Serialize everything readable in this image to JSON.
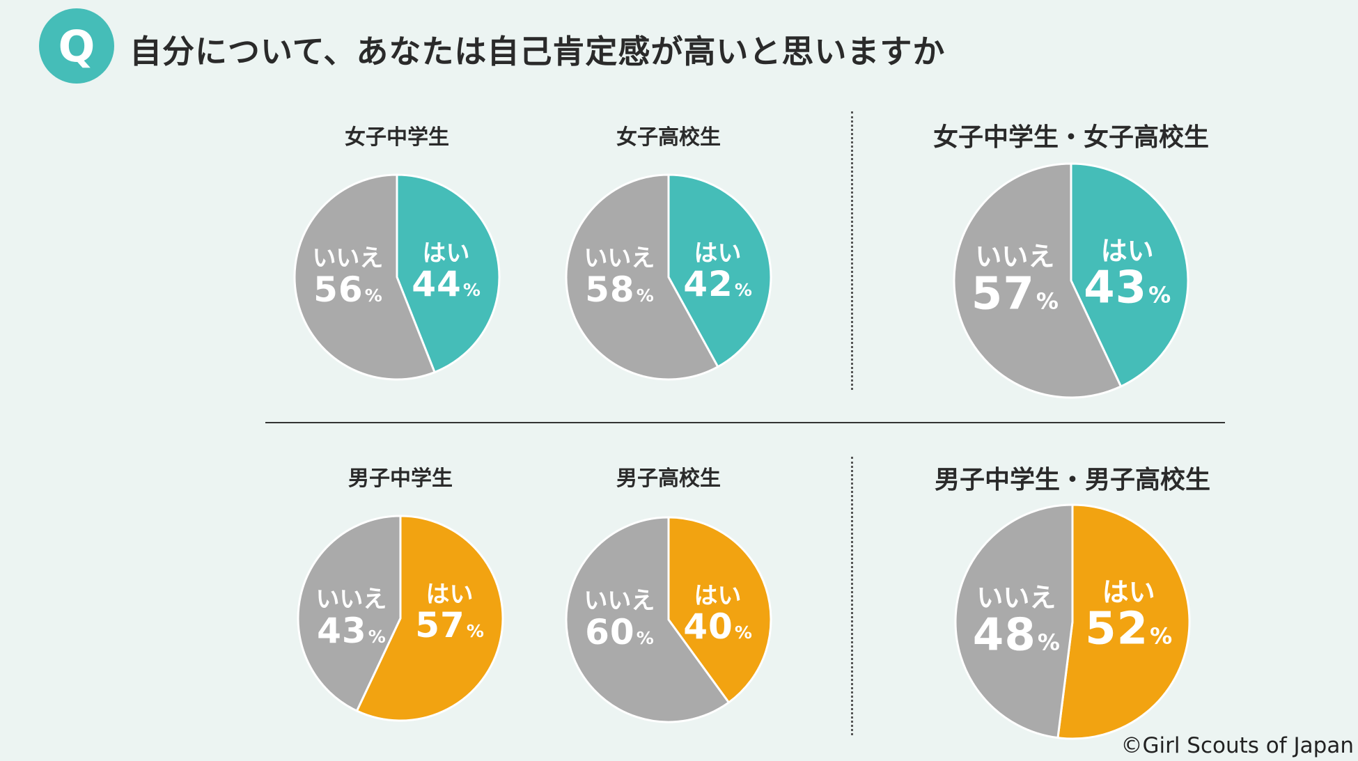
{
  "header": {
    "badge_letter": "Q",
    "question": "自分について、あなたは自己肯定感が高いと思いますか"
  },
  "colors": {
    "girls_yes": "#45bdb8",
    "boys_yes": "#f2a311",
    "no": "#aaaaaa"
  },
  "copyright": "©Girl Scouts of Japan",
  "chart_data": [
    {
      "type": "pie",
      "title": "女子中学生",
      "labels": [
        "はい",
        "いいえ"
      ],
      "values": [
        44,
        56
      ],
      "unit": "%",
      "colors": [
        "#45bdb8",
        "#aaaaaa"
      ]
    },
    {
      "type": "pie",
      "title": "女子高校生",
      "labels": [
        "はい",
        "いいえ"
      ],
      "values": [
        42,
        58
      ],
      "unit": "%",
      "colors": [
        "#45bdb8",
        "#aaaaaa"
      ]
    },
    {
      "type": "pie",
      "title": "女子中学生・女子高校生",
      "labels": [
        "はい",
        "いいえ"
      ],
      "values": [
        43,
        57
      ],
      "unit": "%",
      "colors": [
        "#45bdb8",
        "#aaaaaa"
      ]
    },
    {
      "type": "pie",
      "title": "男子中学生",
      "labels": [
        "はい",
        "いいえ"
      ],
      "values": [
        57,
        43
      ],
      "unit": "%",
      "colors": [
        "#f2a311",
        "#aaaaaa"
      ]
    },
    {
      "type": "pie",
      "title": "男子高校生",
      "labels": [
        "はい",
        "いいえ"
      ],
      "values": [
        40,
        60
      ],
      "unit": "%",
      "colors": [
        "#f2a311",
        "#aaaaaa"
      ]
    },
    {
      "type": "pie",
      "title": "男子中学生・男子高校生",
      "labels": [
        "はい",
        "いいえ"
      ],
      "values": [
        52,
        48
      ],
      "unit": "%",
      "colors": [
        "#f2a311",
        "#aaaaaa"
      ]
    }
  ]
}
